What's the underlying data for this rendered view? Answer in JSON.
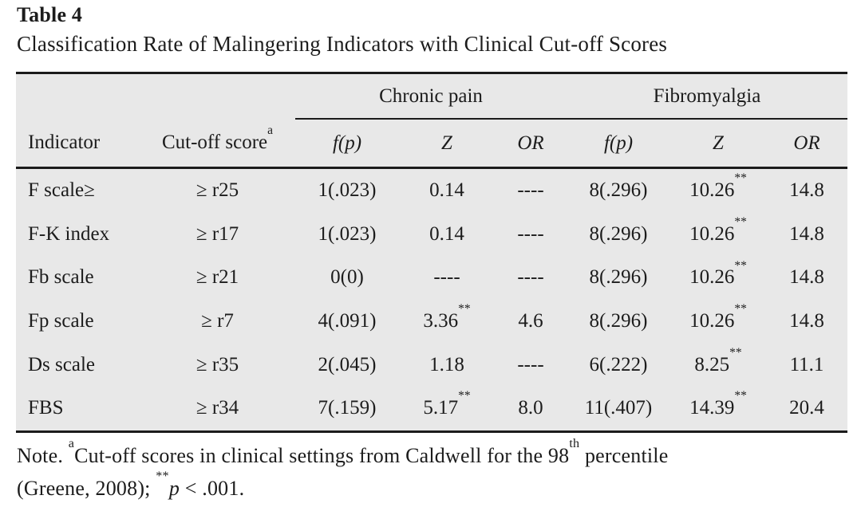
{
  "colors": {
    "table_bg": "#e8e8e8",
    "rule": "#1b1b1b",
    "text": "#1c1c1c"
  },
  "title": "Table 4",
  "subtitle": "Classification Rate of Malingering Indicators with Clinical Cut-off Scores",
  "table": {
    "group_headers": [
      {
        "label": "Chronic pain"
      },
      {
        "label": "Fibromyalgia"
      }
    ],
    "columns": [
      {
        "label": "Indicator",
        "italic": false
      },
      {
        "label": "Cut-off score",
        "sup": "a",
        "italic": false
      },
      {
        "label": "f(p)",
        "italic": true
      },
      {
        "label": "Z",
        "italic": true
      },
      {
        "label": "OR",
        "italic": true
      },
      {
        "label": "f(p)",
        "italic": true
      },
      {
        "label": "Z",
        "italic": true
      },
      {
        "label": "OR",
        "italic": true
      }
    ],
    "rows": [
      [
        "F scale≥",
        "≥ r25",
        "1(.023)",
        "0.14",
        "----",
        "8(.296)",
        "10.26**",
        "14.8"
      ],
      [
        "F-K index",
        "≥ r17",
        "1(.023)",
        "0.14",
        "----",
        "8(.296)",
        "10.26**",
        "14.8"
      ],
      [
        "Fb scale",
        "≥ r21",
        "0(0)",
        "----",
        "----",
        "8(.296)",
        "10.26**",
        "14.8"
      ],
      [
        "Fp scale",
        "≥ r7",
        "4(.091)",
        "3.36**",
        "4.6",
        "8(.296)",
        "10.26**",
        "14.8"
      ],
      [
        "Ds scale",
        "≥ r35",
        "2(.045)",
        "1.18",
        "----",
        "6(.222)",
        "8.25**",
        "11.1"
      ],
      [
        "FBS",
        "≥ r34",
        "7(.159)",
        "5.17**",
        "8.0",
        "11(.407)",
        "14.39**",
        "20.4"
      ]
    ]
  },
  "note": {
    "parts": [
      {
        "t": "Note. "
      },
      {
        "sup": "a"
      },
      {
        "t": "Cut-off scores in clinical settings from Caldwell for the 98"
      },
      {
        "sup": "th"
      },
      {
        "t": " percentile"
      },
      {
        "br": true
      },
      {
        "t": "(Greene, 2008); "
      },
      {
        "sup": "**"
      },
      {
        "i": "p"
      },
      {
        "t": " < .001."
      }
    ]
  }
}
